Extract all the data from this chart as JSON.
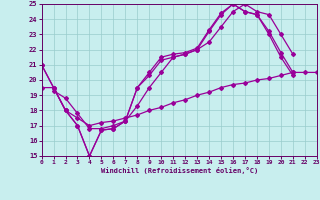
{
  "xlabel": "Windchill (Refroidissement éolien,°C)",
  "bg_color": "#c8eeee",
  "line_color": "#990099",
  "grid_color": "#99cccc",
  "tick_color": "#660066",
  "xlim": [
    0,
    23
  ],
  "ylim": [
    15,
    25
  ],
  "line1_x": [
    0,
    1,
    2,
    3,
    4,
    5,
    6,
    7,
    8,
    9,
    10,
    11,
    12,
    13,
    14,
    15,
    16,
    17,
    18,
    19,
    20,
    21,
    22,
    23
  ],
  "line1_y": [
    21.0,
    19.5,
    18.0,
    17.0,
    15.0,
    16.7,
    16.8,
    17.3,
    19.5,
    20.5,
    21.5,
    21.7,
    21.8,
    22.1,
    23.3,
    24.4,
    25.0,
    24.5,
    24.3,
    23.2,
    21.8,
    20.5,
    null,
    null
  ],
  "line2_x": [
    0,
    1,
    2,
    3,
    4,
    5,
    6,
    7,
    8,
    9,
    10,
    11,
    12,
    13,
    14,
    15,
    16,
    17,
    18,
    19,
    20,
    21,
    22,
    23
  ],
  "line2_y": [
    21.0,
    19.5,
    18.0,
    17.0,
    15.0,
    16.7,
    16.8,
    17.3,
    19.5,
    20.3,
    21.3,
    21.5,
    21.7,
    22.0,
    23.2,
    24.3,
    25.0,
    24.5,
    24.3,
    23.0,
    21.5,
    20.3,
    null,
    null
  ],
  "line3_x": [
    0,
    1,
    2,
    3,
    4,
    5,
    6,
    7,
    8,
    9,
    10,
    11,
    12,
    13,
    14,
    15,
    16,
    17,
    18,
    19,
    20,
    21,
    22,
    23
  ],
  "line3_y": [
    null,
    19.3,
    18.8,
    17.8,
    16.8,
    16.8,
    17.0,
    17.3,
    18.3,
    19.5,
    20.5,
    21.5,
    21.7,
    22.0,
    22.5,
    23.5,
    24.5,
    25.0,
    24.5,
    24.3,
    23.0,
    21.7,
    null,
    null
  ],
  "line4_x": [
    0,
    1,
    2,
    3,
    4,
    5,
    6,
    7,
    8,
    9,
    10,
    11,
    12,
    13,
    14,
    15,
    16,
    17,
    18,
    19,
    20,
    21,
    22,
    23
  ],
  "line4_y": [
    19.5,
    19.5,
    18.0,
    17.5,
    17.0,
    17.2,
    17.3,
    17.5,
    17.7,
    18.0,
    18.2,
    18.5,
    18.7,
    19.0,
    19.2,
    19.5,
    19.7,
    19.8,
    20.0,
    20.1,
    20.3,
    20.5,
    20.5,
    20.5
  ]
}
